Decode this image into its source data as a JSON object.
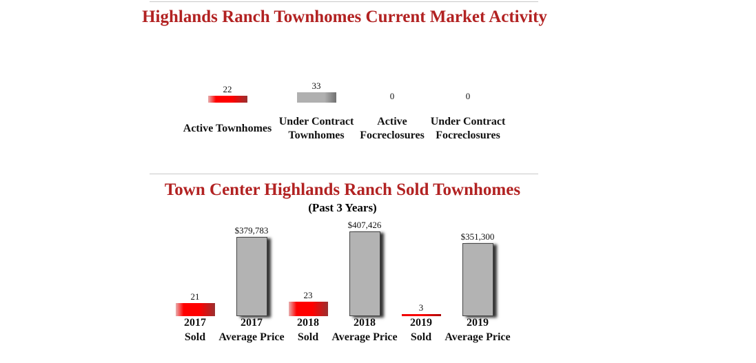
{
  "market": {
    "title": "Highlands Ranch Townhomes Current Market Activity",
    "items": [
      {
        "value": 22,
        "label_lines": [
          "Active Townhomes"
        ],
        "color": "red"
      },
      {
        "value": 33,
        "label_lines": [
          "Under Contract",
          "Townhomes"
        ],
        "color": "gray"
      },
      {
        "value": 0,
        "label_lines": [
          "Active",
          "Focreclosures"
        ],
        "color": "none"
      },
      {
        "value": 0,
        "label_lines": [
          "Under Contract",
          "Focreclosures"
        ],
        "color": "none"
      }
    ]
  },
  "chart_data": {
    "type": "bar",
    "title": "Town Center Highlands Ranch Sold Townhomes",
    "subtitle": "(Past 3 Years)",
    "categories": [
      "2017 Sold",
      "2017 Average Price",
      "2018 Sold",
      "2018 Average Price",
      "2019 Sold",
      "2019 Average Price"
    ],
    "bars": [
      {
        "year": "2017",
        "kind": "Sold",
        "value": 21,
        "label": "21"
      },
      {
        "year": "2017",
        "kind": "Average Price",
        "value": 379783,
        "label": "$379,783"
      },
      {
        "year": "2018",
        "kind": "Sold",
        "value": 23,
        "label": "23"
      },
      {
        "year": "2018",
        "kind": "Average Price",
        "value": 407426,
        "label": "$407,426"
      },
      {
        "year": "2019",
        "kind": "Sold",
        "value": 3,
        "label": "3"
      },
      {
        "year": "2019",
        "kind": "Average Price",
        "value": 351300,
        "label": "$351,300"
      }
    ],
    "colors": {
      "sold": "#ff0000",
      "price": "#b3b3b3",
      "title": "#b22222"
    }
  }
}
